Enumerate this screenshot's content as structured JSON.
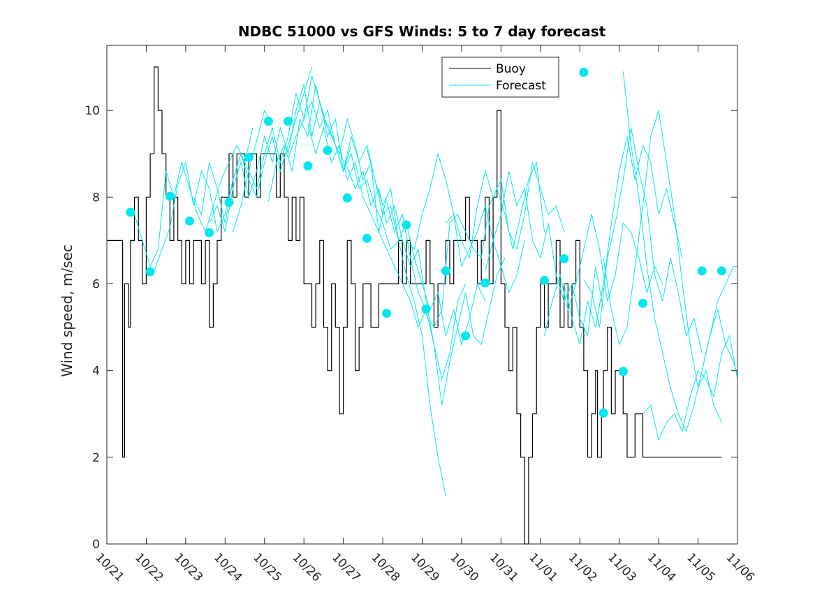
{
  "chart_data": {
    "type": "line",
    "title": "NDBC 51000 vs GFS Winds: 5 to 7 day forecast",
    "xlabel": "",
    "ylabel": "Wind speed, m/sec",
    "ylim": [
      0,
      11.5
    ],
    "yticks": [
      0,
      2,
      4,
      6,
      8,
      10
    ],
    "xlim_days": [
      0,
      16
    ],
    "xtick_labels": [
      "10/21",
      "10/22",
      "10/23",
      "10/24",
      "10/25",
      "10/26",
      "10/27",
      "10/28",
      "10/29",
      "10/30",
      "10/31",
      "11/01",
      "11/02",
      "11/03",
      "11/04",
      "11/05",
      "11/06"
    ],
    "legend": {
      "position": "top-right",
      "entries": [
        "Buoy",
        "Forecast"
      ]
    },
    "colors": {
      "buoy": "#000000",
      "forecast": "#00e8ee",
      "axis": "#262626"
    },
    "buoy": {
      "name": "Buoy",
      "t": [
        0.0,
        0.35,
        0.4,
        0.45,
        0.55,
        0.6,
        0.7,
        0.8,
        0.9,
        1.0,
        1.1,
        1.2,
        1.3,
        1.4,
        1.5,
        1.6,
        1.7,
        1.8,
        1.9,
        2.0,
        2.1,
        2.2,
        2.3,
        2.4,
        2.5,
        2.6,
        2.7,
        2.8,
        2.9,
        3.0,
        3.1,
        3.2,
        3.3,
        3.4,
        3.5,
        3.6,
        3.7,
        3.8,
        3.9,
        4.0,
        4.1,
        4.2,
        4.3,
        4.4,
        4.5,
        4.6,
        4.7,
        4.8,
        4.9,
        5.0,
        5.1,
        5.2,
        5.3,
        5.4,
        5.5,
        5.6,
        5.7,
        5.8,
        5.9,
        6.0,
        6.1,
        6.2,
        6.3,
        6.4,
        6.5,
        6.6,
        6.7,
        6.8,
        6.9,
        7.0,
        7.1,
        7.2,
        7.3,
        7.4,
        7.5,
        7.6,
        7.7,
        7.8,
        7.9,
        8.0,
        8.1,
        8.2,
        8.3,
        8.4,
        8.5,
        8.6,
        8.7,
        8.8,
        8.9,
        9.0,
        9.1,
        9.2,
        9.3,
        9.4,
        9.5,
        9.6,
        9.7,
        9.8,
        9.9,
        10.0,
        10.1,
        10.2,
        10.3,
        10.4,
        10.5,
        10.6,
        10.7,
        10.8,
        10.9,
        11.0,
        11.1,
        11.2,
        11.3,
        11.4,
        11.5,
        11.6,
        11.7,
        11.8,
        11.9,
        12.0,
        12.1,
        12.2,
        12.3,
        12.4,
        12.45,
        12.5,
        12.55,
        12.6,
        12.7,
        12.8,
        12.9,
        13.0,
        13.1,
        13.2,
        13.3,
        13.4,
        13.5,
        13.6,
        13.7,
        13.8,
        13.9,
        14.0,
        14.1,
        14.2,
        14.3,
        14.4,
        14.5,
        14.6,
        14.7,
        14.8,
        14.9,
        15.0,
        15.1,
        15.2,
        15.3,
        15.4,
        15.5,
        15.6
      ],
      "v": [
        7,
        7,
        2,
        6,
        5,
        7,
        8,
        7,
        6,
        8,
        9,
        11,
        10,
        9,
        8,
        7,
        8,
        7,
        6,
        7,
        6,
        7,
        7,
        6,
        7,
        5,
        6,
        7,
        8,
        8,
        9,
        8,
        9,
        9,
        8,
        9,
        9,
        8,
        9,
        9,
        9,
        9,
        8,
        9,
        8,
        7,
        8,
        7,
        8,
        6,
        6,
        5,
        6,
        7,
        5,
        4,
        6,
        5,
        3,
        5,
        7,
        6,
        4,
        5,
        6,
        6,
        5,
        5,
        6,
        6,
        6,
        6,
        6,
        7,
        6,
        7,
        6,
        6,
        6,
        6,
        7,
        6,
        5,
        6,
        6,
        7,
        6,
        7,
        7,
        7,
        8,
        7,
        7,
        6,
        7,
        8,
        6,
        8,
        10,
        6,
        5,
        4,
        5,
        3,
        2,
        0,
        2,
        3,
        5,
        6,
        5,
        6,
        6,
        7,
        5,
        6,
        5,
        6,
        7,
        5,
        4,
        2,
        3,
        4,
        2,
        2,
        3,
        4,
        5,
        3,
        4,
        4,
        3,
        2,
        2,
        3,
        3,
        2,
        2,
        2,
        2,
        2,
        2,
        2,
        2,
        2,
        2,
        2,
        2,
        2,
        2,
        2,
        2,
        2,
        2,
        2,
        2,
        2
      ]
    },
    "forecast_lines": [
      {
        "t": [
          0.7,
          0.9,
          1.1,
          1.3,
          1.5,
          1.7,
          1.9,
          2.1,
          2.3,
          2.5,
          2.7,
          2.9,
          3.1,
          3.3,
          3.5,
          3.7
        ],
        "v": [
          7.6,
          7.0,
          6.4,
          6.8,
          8.6,
          8.0,
          8.8,
          8.2,
          7.6,
          7.2,
          7.8,
          8.4,
          8.8,
          9.2,
          8.8,
          9.6
        ]
      },
      {
        "t": [
          1.2,
          1.4,
          1.6,
          1.8,
          2.0,
          2.2,
          2.4,
          2.6,
          2.8,
          3.0,
          3.2,
          3.4,
          3.6,
          3.8,
          4.0,
          4.2
        ],
        "v": [
          6.3,
          6.8,
          7.3,
          8.3,
          8.8,
          7.8,
          8.6,
          8.2,
          7.2,
          7.6,
          8.4,
          9.0,
          8.6,
          9.3,
          10.0,
          9.7
        ]
      },
      {
        "t": [
          2.2,
          2.4,
          2.6,
          2.8,
          3.0,
          3.2,
          3.4,
          3.6,
          3.8,
          4.0,
          4.2,
          4.4,
          4.6,
          4.8,
          5.0,
          5.2
        ],
        "v": [
          8.0,
          7.6,
          8.8,
          8.2,
          7.4,
          8.4,
          9.0,
          8.4,
          8.0,
          8.8,
          9.4,
          8.6,
          9.2,
          9.8,
          10.4,
          11.0
        ]
      },
      {
        "t": [
          2.6,
          2.8,
          3.0,
          3.2,
          3.4,
          3.6,
          3.8,
          4.0,
          4.2,
          4.4,
          4.6,
          4.8,
          5.0,
          5.2,
          5.4,
          5.6
        ],
        "v": [
          7.4,
          7.8,
          7.2,
          8.2,
          8.8,
          8.0,
          8.6,
          9.4,
          8.8,
          9.6,
          9.0,
          10.0,
          10.6,
          9.4,
          10.2,
          9.6
        ]
      },
      {
        "t": [
          3.2,
          3.4,
          3.6,
          3.8,
          4.0,
          4.2,
          4.4,
          4.6,
          4.8,
          5.0,
          5.2,
          5.4,
          5.6,
          5.8,
          6.0,
          6.2
        ],
        "v": [
          7.2,
          7.8,
          8.6,
          8.2,
          9.0,
          9.6,
          8.8,
          9.4,
          10.4,
          9.8,
          10.8,
          10.2,
          9.4,
          9.8,
          8.6,
          9.2
        ]
      },
      {
        "t": [
          4.1,
          4.3,
          4.5,
          4.7,
          4.9,
          5.1,
          5.3,
          5.5,
          5.7,
          5.9,
          6.1,
          6.3,
          6.5,
          6.7,
          6.9,
          7.1
        ],
        "v": [
          7.9,
          8.8,
          9.2,
          8.6,
          9.8,
          9.4,
          10.6,
          9.8,
          9.4,
          9.0,
          9.8,
          9.2,
          8.4,
          8.8,
          7.2,
          8.0
        ]
      },
      {
        "t": [
          4.6,
          4.8,
          5.0,
          5.2,
          5.4,
          5.6,
          5.8,
          6.0,
          6.2,
          6.4,
          6.6,
          6.8,
          7.0,
          7.2,
          7.4,
          7.6
        ],
        "v": [
          8.9,
          9.4,
          9.8,
          10.2,
          9.6,
          10.0,
          9.2,
          8.6,
          9.4,
          8.8,
          9.2,
          8.4,
          7.6,
          7.8,
          7.0,
          7.4
        ]
      },
      {
        "t": [
          5.1,
          5.3,
          5.5,
          5.7,
          5.9,
          6.1,
          6.3,
          6.5,
          6.7,
          6.9,
          7.1,
          7.3,
          7.5,
          7.7,
          7.9,
          8.1
        ],
        "v": [
          9.7,
          9.0,
          9.6,
          8.8,
          9.2,
          8.4,
          8.8,
          8.0,
          7.6,
          7.2,
          6.8,
          6.4,
          6.0,
          5.6,
          5.0,
          5.4
        ]
      },
      {
        "t": [
          5.6,
          5.8,
          6.0,
          6.2,
          6.4,
          6.6,
          6.8,
          7.0,
          7.2,
          7.4,
          7.6,
          7.8,
          8.0,
          8.2,
          8.4,
          8.6
        ],
        "v": [
          9.7,
          9.2,
          8.6,
          9.0,
          8.2,
          8.4,
          7.8,
          7.4,
          6.8,
          7.0,
          6.2,
          5.6,
          4.8,
          3.2,
          2.0,
          1.1
        ]
      },
      {
        "t": [
          6.1,
          6.3,
          6.5,
          6.7,
          6.9,
          7.1,
          7.3,
          7.5,
          7.7,
          7.9,
          8.1,
          8.3,
          8.5,
          8.7,
          8.9,
          9.1
        ],
        "v": [
          8.7,
          8.2,
          8.6,
          7.8,
          8.2,
          7.4,
          7.8,
          7.0,
          6.4,
          6.8,
          5.6,
          4.6,
          3.8,
          4.4,
          5.6,
          6.0
        ]
      },
      {
        "t": [
          6.6,
          6.8,
          7.0,
          7.2,
          7.4,
          7.6,
          7.8,
          8.0,
          8.2,
          8.4,
          8.6,
          8.8,
          9.0,
          9.2,
          9.4,
          9.6
        ],
        "v": [
          9.1,
          8.4,
          7.8,
          8.2,
          7.0,
          7.4,
          6.6,
          6.0,
          5.4,
          5.8,
          4.8,
          5.4,
          4.6,
          5.2,
          6.0,
          5.6
        ]
      },
      {
        "t": [
          7.1,
          7.3,
          7.5,
          7.7,
          7.9,
          8.1,
          8.3,
          8.5,
          8.7,
          8.9,
          9.1,
          9.3,
          9.5,
          9.7,
          9.9,
          10.1
        ],
        "v": [
          7.9,
          7.2,
          7.6,
          6.6,
          5.8,
          5.4,
          4.6,
          3.2,
          4.2,
          5.0,
          5.8,
          4.8,
          4.6,
          5.4,
          6.2,
          6.6
        ]
      },
      {
        "t": [
          7.6,
          7.8,
          8.0,
          8.2,
          8.4,
          8.6,
          8.8,
          9.0,
          9.2,
          9.4,
          9.6,
          9.8,
          10.0,
          10.2,
          10.4,
          10.6
        ],
        "v": [
          7.0,
          6.8,
          7.6,
          8.2,
          9.0,
          8.4,
          7.6,
          6.4,
          6.8,
          7.2,
          7.8,
          7.0,
          6.4,
          5.8,
          6.2,
          7.0
        ]
      },
      {
        "t": [
          8.1,
          8.3,
          8.5,
          8.7,
          8.9,
          9.1,
          9.3,
          9.5,
          9.7,
          9.9,
          10.1,
          10.3,
          10.5,
          10.7,
          10.9,
          11.1
        ],
        "v": [
          5.3,
          5.0,
          5.4,
          7.4,
          7.6,
          7.2,
          6.8,
          6.6,
          7.8,
          8.2,
          7.6,
          6.8,
          7.6,
          8.4,
          8.8,
          7.2
        ]
      },
      {
        "t": [
          8.6,
          8.8,
          9.0,
          9.2,
          9.4,
          9.6,
          9.8,
          10.0,
          10.2,
          10.4,
          10.6,
          10.8,
          11.0,
          11.2,
          11.4,
          11.6
        ],
        "v": [
          7.4,
          7.6,
          7.0,
          6.6,
          7.8,
          8.6,
          8.0,
          8.4,
          7.2,
          6.8,
          7.6,
          8.8,
          8.2,
          7.6,
          7.8,
          7.2
        ]
      },
      {
        "t": [
          9.6,
          9.8,
          10.0,
          10.2,
          10.4,
          10.6,
          10.8,
          11.0,
          11.2,
          11.4,
          11.6,
          11.8,
          12.0,
          12.2,
          12.4,
          12.6
        ],
        "v": [
          6.3,
          7.0,
          7.6,
          8.6,
          7.8,
          8.2,
          7.0,
          6.6,
          7.4,
          6.2,
          5.6,
          6.0,
          5.2,
          4.8,
          6.4,
          5.4
        ]
      },
      {
        "t": [
          11.1,
          11.3,
          11.5,
          11.7,
          11.9,
          12.1,
          12.3,
          12.5,
          12.7,
          12.9,
          13.1,
          13.3,
          13.5,
          13.7,
          13.9,
          14.1
        ],
        "v": [
          4.8,
          5.6,
          6.2,
          5.4,
          6.0,
          6.8,
          7.6,
          6.8,
          5.6,
          6.2,
          7.4,
          7.2,
          6.6,
          5.8,
          6.4,
          6.0
        ]
      },
      {
        "t": [
          11.6,
          11.8,
          12.0,
          12.2,
          12.4,
          12.6,
          12.8,
          13.0,
          13.2,
          13.4,
          13.6,
          13.8,
          14.0,
          14.2,
          14.4,
          14.6
        ],
        "v": [
          6.0,
          5.2,
          4.6,
          5.6,
          5.0,
          6.0,
          7.4,
          8.6,
          9.4,
          8.4,
          9.2,
          8.8,
          7.6,
          8.2,
          7.4,
          6.6
        ]
      },
      {
        "t": [
          12.1,
          12.3,
          12.5,
          12.7,
          12.9,
          13.1,
          13.3,
          13.5,
          13.7,
          13.9,
          14.1,
          14.3,
          14.5,
          14.7,
          14.9,
          15.1
        ],
        "v": [
          6.1,
          5.8,
          5.0,
          6.6,
          7.4,
          8.4,
          9.6,
          8.6,
          7.8,
          6.2,
          5.6,
          6.6,
          5.8,
          4.8,
          5.2,
          4.4
        ]
      },
      {
        "t": [
          12.6,
          12.8,
          13.0,
          13.2,
          13.4,
          13.6,
          13.8,
          14.0,
          14.2,
          14.4,
          14.6,
          14.8,
          15.0,
          15.2,
          15.4,
          15.6
        ],
        "v": [
          6.6,
          5.4,
          4.6,
          5.0,
          6.4,
          7.8,
          9.4,
          10.0,
          8.8,
          7.6,
          6.0,
          4.6,
          3.6,
          4.0,
          3.2,
          2.8
        ]
      },
      {
        "t": [
          13.1,
          13.3,
          13.5,
          13.7,
          13.9,
          14.1,
          14.3,
          14.5,
          14.7,
          14.9,
          15.1,
          15.3,
          15.5,
          15.7,
          15.9,
          16.0
        ],
        "v": [
          10.9,
          9.2,
          8.0,
          6.4,
          5.2,
          4.4,
          3.6,
          3.0,
          2.6,
          3.2,
          4.0,
          4.8,
          5.4,
          4.6,
          4.2,
          3.9
        ]
      },
      {
        "t": [
          13.6,
          13.8,
          14.0,
          14.2,
          14.4,
          14.6,
          14.8,
          15.0,
          15.2,
          15.4,
          15.6,
          15.8,
          16.0
        ],
        "v": [
          3.0,
          3.2,
          2.4,
          2.8,
          3.0,
          2.6,
          3.4,
          4.0,
          3.8,
          3.4,
          4.4,
          4.8,
          3.8
        ]
      },
      {
        "t": [
          15.1,
          15.3,
          15.5,
          15.7,
          15.9,
          16.0
        ],
        "v": [
          4.0,
          4.8,
          5.6,
          6.0,
          6.4,
          6.4
        ]
      }
    ],
    "forecast_markers": {
      "t": [
        0.6,
        1.1,
        1.6,
        2.1,
        2.6,
        3.1,
        3.6,
        4.1,
        4.6,
        5.1,
        5.6,
        6.1,
        6.6,
        7.1,
        7.6,
        8.1,
        8.6,
        9.1,
        9.6,
        11.1,
        11.6,
        12.1,
        12.6,
        13.1,
        13.6,
        15.1,
        15.6
      ],
      "v": [
        7.65,
        6.28,
        8.02,
        7.45,
        7.18,
        7.88,
        8.92,
        9.75,
        9.75,
        8.72,
        9.08,
        7.98,
        7.05,
        5.32,
        7.36,
        5.42,
        6.3,
        4.8,
        6.02,
        6.08,
        6.58,
        10.88,
        3.02,
        3.98,
        5.55,
        6.3,
        6.3
      ]
    }
  }
}
